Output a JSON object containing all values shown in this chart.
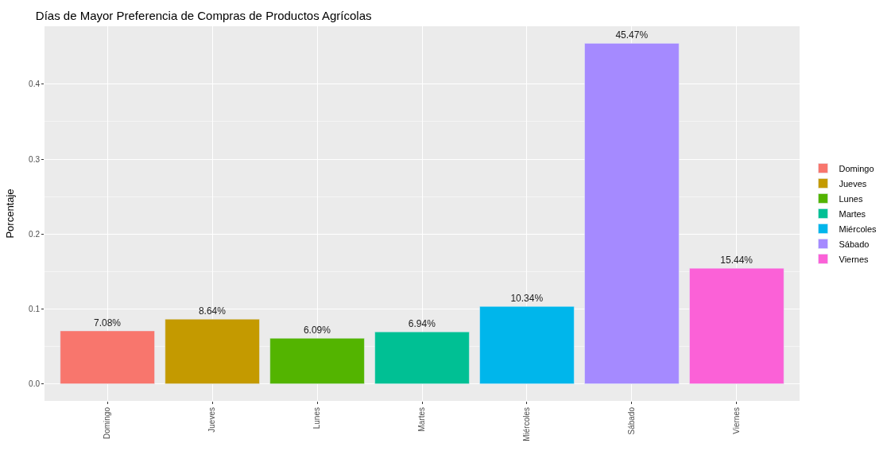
{
  "chart_data": {
    "type": "bar",
    "title": "Días de Mayor Preferencia de Compras de Productos Agrícolas",
    "ylabel": "Porcentaje",
    "categories": [
      "Domingo",
      "Jueves",
      "Lunes",
      "Martes",
      "Miércoles",
      "Sábado",
      "Viernes"
    ],
    "series": [
      {
        "name": "Domingo",
        "color": "#f8766d",
        "values": [
          0.0708,
          null,
          null,
          null,
          null,
          null,
          null
        ],
        "value_labels": [
          "7.08%",
          null,
          null,
          null,
          null,
          null,
          null
        ]
      },
      {
        "name": "Jueves",
        "color": "#c49a00",
        "values": [
          null,
          0.0864,
          null,
          null,
          null,
          null,
          null
        ],
        "value_labels": [
          null,
          "8.64%",
          null,
          null,
          null,
          null,
          null
        ]
      },
      {
        "name": "Lunes",
        "color": "#53b400",
        "values": [
          null,
          null,
          0.0609,
          null,
          null,
          null,
          null
        ],
        "value_labels": [
          null,
          null,
          "6.09%",
          null,
          null,
          null,
          null
        ]
      },
      {
        "name": "Martes",
        "color": "#00c094",
        "values": [
          null,
          null,
          null,
          0.0694,
          null,
          null,
          null
        ],
        "value_labels": [
          null,
          null,
          null,
          "6.94%",
          null,
          null,
          null
        ]
      },
      {
        "name": "Miércoles",
        "color": "#00b6eb",
        "values": [
          null,
          null,
          null,
          null,
          0.1034,
          null,
          null
        ],
        "value_labels": [
          null,
          null,
          null,
          null,
          "10.34%",
          null,
          null
        ]
      },
      {
        "name": "Sábado",
        "color": "#a58aff",
        "values": [
          null,
          null,
          null,
          null,
          null,
          0.4547,
          null
        ],
        "value_labels": [
          null,
          null,
          null,
          null,
          null,
          "45.47%",
          null
        ]
      },
      {
        "name": "Viernes",
        "color": "#fb61d7",
        "values": [
          null,
          null,
          null,
          null,
          null,
          null,
          0.1544
        ],
        "value_labels": [
          null,
          null,
          null,
          null,
          null,
          null,
          "15.44%"
        ]
      }
    ],
    "ylim": [
      -0.0227,
      0.4774
    ],
    "yticks": [
      {
        "value": 0,
        "label": "0.0"
      },
      0.1,
      0.2,
      0.3,
      0.4
    ],
    "grid": true,
    "legend": "right"
  }
}
